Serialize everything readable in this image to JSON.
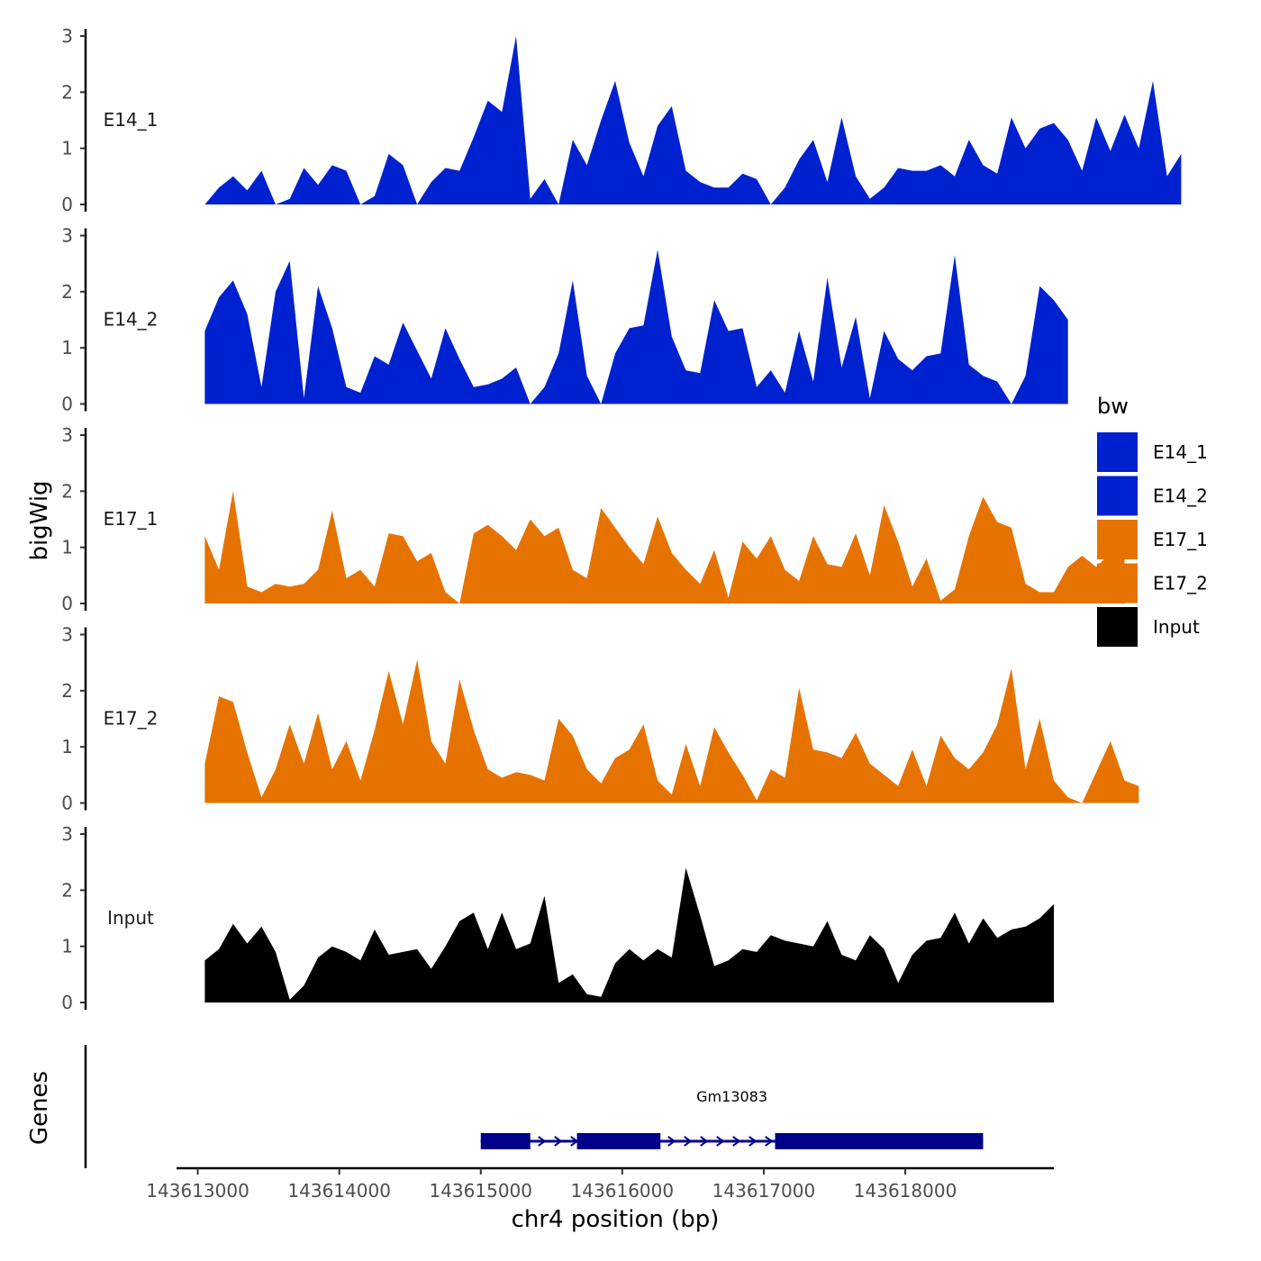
{
  "chart_data": {
    "type": "area",
    "xlabel": "chr4 position (bp)",
    "ylabel": "bigWig",
    "genes_label": "Genes",
    "xlim": [
      143612850,
      143619050
    ],
    "ylim": [
      0,
      3
    ],
    "x_ticks": [
      143613000,
      143614000,
      143615000,
      143616000,
      143617000,
      143618000
    ],
    "x_tick_labels": [
      "143613000",
      "143614000",
      "143615000",
      "143616000",
      "143617000",
      "143618000"
    ],
    "y_ticks": [
      0,
      1,
      2,
      3
    ],
    "y_tick_labels": [
      "0",
      "1",
      "2",
      "3"
    ],
    "legend": {
      "title": "bw",
      "entries": [
        {
          "name": "E14_1",
          "color": "#0021CF"
        },
        {
          "name": "E14_2",
          "color": "#0021CF"
        },
        {
          "name": "E17_1",
          "color": "#E67300"
        },
        {
          "name": "E17_2",
          "color": "#E67300"
        },
        {
          "name": "Input",
          "color": "#000000"
        }
      ]
    },
    "series": [
      {
        "name": "E14_1",
        "color": "#0021CF",
        "start": 143613050,
        "step": 100,
        "values": [
          0,
          0.3,
          0.5,
          0.25,
          0.6,
          0,
          0.1,
          0.65,
          0.35,
          0.7,
          0.6,
          0,
          0.15,
          0.9,
          0.7,
          0,
          0.4,
          0.65,
          0.6,
          1.2,
          1.85,
          1.65,
          3.0,
          0.1,
          0.45,
          0,
          1.15,
          0.7,
          1.5,
          2.2,
          1.1,
          0.5,
          1.4,
          1.75,
          0.6,
          0.4,
          0.3,
          0.3,
          0.55,
          0.45,
          0,
          0.3,
          0.8,
          1.15,
          0.4,
          1.55,
          0.5,
          0.1,
          0.3,
          0.65,
          0.6,
          0.6,
          0.7,
          0.5,
          1.15,
          0.7,
          0.55,
          1.55,
          1.0,
          1.35,
          1.45,
          1.15,
          0.6,
          1.55,
          0.95,
          1.6,
          1.0,
          2.2,
          0.5,
          0.9
        ]
      },
      {
        "name": "E14_2",
        "color": "#0021CF",
        "start": 143613050,
        "step": 100,
        "values": [
          1.3,
          1.9,
          2.2,
          1.6,
          0.3,
          2.0,
          2.55,
          0.1,
          2.1,
          1.35,
          0.3,
          0.2,
          0.85,
          0.7,
          1.45,
          0.95,
          0.45,
          1.35,
          0.8,
          0.3,
          0.35,
          0.45,
          0.65,
          0,
          0.3,
          0.9,
          2.2,
          0.5,
          0,
          0.9,
          1.35,
          1.4,
          2.75,
          1.2,
          0.6,
          0.55,
          1.85,
          1.3,
          1.35,
          0.3,
          0.6,
          0.2,
          1.3,
          0.4,
          2.25,
          0.65,
          1.55,
          0.1,
          1.3,
          0.8,
          0.6,
          0.85,
          0.9,
          2.65,
          0.7,
          0.5,
          0.4,
          0,
          0.5,
          2.1,
          1.85,
          1.5
        ]
      },
      {
        "name": "E17_1",
        "color": "#E67300",
        "start": 143613050,
        "step": 100,
        "values": [
          1.2,
          0.6,
          2.0,
          0.3,
          0.2,
          0.35,
          0.3,
          0.35,
          0.6,
          1.65,
          0.45,
          0.6,
          0.3,
          1.25,
          1.2,
          0.75,
          0.9,
          0.2,
          0,
          1.25,
          1.4,
          1.2,
          0.95,
          1.5,
          1.2,
          1.35,
          0.6,
          0.45,
          1.7,
          1.35,
          1.0,
          0.7,
          1.55,
          0.9,
          0.6,
          0.35,
          0.95,
          0.1,
          1.1,
          0.8,
          1.2,
          0.6,
          0.4,
          1.2,
          0.7,
          0.65,
          1.25,
          0.5,
          1.75,
          1.1,
          0.3,
          0.8,
          0.05,
          0.25,
          1.2,
          1.9,
          1.45,
          1.35,
          0.35,
          0.2,
          0.2,
          0.65,
          0.85,
          0.65,
          0.9,
          1.0
        ]
      },
      {
        "name": "E17_2",
        "color": "#E67300",
        "start": 143613050,
        "step": 100,
        "values": [
          0.7,
          1.9,
          1.8,
          0.9,
          0.1,
          0.6,
          1.4,
          0.7,
          1.6,
          0.6,
          1.1,
          0.4,
          1.3,
          2.35,
          1.4,
          2.55,
          1.1,
          0.7,
          2.2,
          1.3,
          0.6,
          0.45,
          0.55,
          0.5,
          0.4,
          1.5,
          1.2,
          0.6,
          0.35,
          0.8,
          0.95,
          1.4,
          0.4,
          0.15,
          1.05,
          0.3,
          1.35,
          0.9,
          0.5,
          0.05,
          0.6,
          0.45,
          2.05,
          0.95,
          0.9,
          0.8,
          1.25,
          0.7,
          0.5,
          0.3,
          0.95,
          0.3,
          1.2,
          0.8,
          0.6,
          0.9,
          1.4,
          2.4,
          0.6,
          1.5,
          0.4,
          0.1,
          0,
          0.55,
          1.1,
          0.4,
          0.3
        ]
      },
      {
        "name": "Input",
        "color": "#000000",
        "start": 143613050,
        "step": 100,
        "values": [
          0.75,
          0.95,
          1.4,
          1.05,
          1.35,
          0.9,
          0.05,
          0.3,
          0.8,
          1.0,
          0.9,
          0.75,
          1.3,
          0.85,
          0.9,
          0.95,
          0.6,
          1.0,
          1.45,
          1.6,
          0.95,
          1.6,
          0.95,
          1.05,
          1.9,
          0.35,
          0.5,
          0.15,
          0.1,
          0.7,
          0.95,
          0.75,
          0.95,
          0.8,
          2.4,
          1.55,
          0.65,
          0.75,
          0.95,
          0.9,
          1.2,
          1.1,
          1.05,
          1.0,
          1.45,
          0.85,
          0.75,
          1.2,
          0.95,
          0.35,
          0.85,
          1.1,
          1.15,
          1.6,
          1.05,
          1.5,
          1.15,
          1.3,
          1.35,
          1.5,
          1.75
        ]
      }
    ],
    "genes": [
      {
        "name": "Gm13083",
        "start": 143615000,
        "end": 143618550,
        "strand": "+",
        "color": "#00008B",
        "exons": [
          [
            143615000,
            143615350
          ],
          [
            143615680,
            143616270
          ],
          [
            143617080,
            143618550
          ]
        ]
      }
    ]
  }
}
